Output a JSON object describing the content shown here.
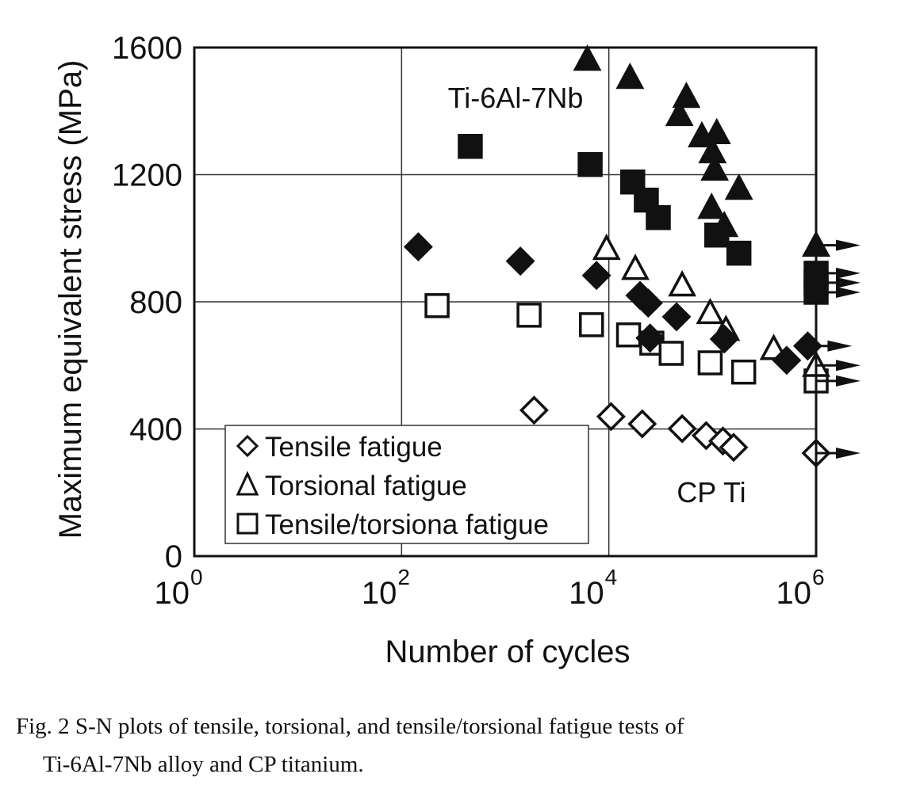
{
  "chart_data": {
    "type": "scatter",
    "xlabel": "Number of cycles",
    "ylabel": "Maximum equivalent stress (MPa)",
    "xscale": "log",
    "xlim": [
      1,
      1000000
    ],
    "ylim": [
      0,
      1600
    ],
    "xticks": [
      {
        "base": "10",
        "exp": "0",
        "value": 1
      },
      {
        "base": "10",
        "exp": "2",
        "value": 100
      },
      {
        "base": "10",
        "exp": "4",
        "value": 10000
      },
      {
        "base": "10",
        "exp": "6",
        "value": 1000000
      }
    ],
    "yticks": [
      0,
      400,
      800,
      1200,
      1600
    ],
    "grid": true,
    "legend": {
      "placement": "bottom-left",
      "entries": [
        {
          "marker": "diamond",
          "label": "Tensile fatigue"
        },
        {
          "marker": "triangle",
          "label": "Torsional fatigue"
        },
        {
          "marker": "square",
          "label": "Tensile/torsiona fatigue"
        }
      ]
    },
    "annotations": [
      {
        "text": "Ti-6Al-7Nb",
        "x": 3000,
        "y": 1440
      },
      {
        "text": "CP Ti",
        "x": 250000,
        "y": 200
      }
    ],
    "runout_note": "arrow",
    "series": [
      {
        "marker": "triangle",
        "filled": true,
        "points": [
          [
            6200,
            1563
          ],
          [
            16000,
            1506
          ],
          [
            56000,
            1446
          ],
          [
            48000,
            1389
          ],
          [
            79000,
            1322
          ],
          [
            110000,
            1332
          ],
          [
            100000,
            1272
          ],
          [
            105000,
            1217
          ],
          [
            98000,
            1097
          ],
          [
            130000,
            1040
          ],
          [
            180000,
            1157
          ],
          [
            1000000,
            978,
            "runout"
          ]
        ]
      },
      {
        "marker": "square",
        "filled": true,
        "points": [
          [
            460,
            1289
          ],
          [
            6600,
            1232
          ],
          [
            17000,
            1177
          ],
          [
            23000,
            1120
          ],
          [
            30000,
            1065
          ],
          [
            110000,
            1010
          ],
          [
            180000,
            953
          ],
          [
            1000000,
            890,
            "runout"
          ],
          [
            1000000,
            860,
            "runout"
          ],
          [
            1000000,
            830,
            "runout"
          ]
        ]
      },
      {
        "marker": "diamond",
        "filled": true,
        "points": [
          [
            145,
            973
          ],
          [
            1400,
            928
          ],
          [
            7600,
            883
          ],
          [
            20000,
            820
          ],
          [
            24000,
            796
          ],
          [
            25000,
            686
          ],
          [
            45000,
            753
          ],
          [
            130000,
            683
          ],
          [
            520000,
            616
          ],
          [
            830000,
            661,
            "runout"
          ]
        ]
      },
      {
        "marker": "triangle",
        "filled": false,
        "points": [
          [
            9500,
            968
          ],
          [
            18000,
            905
          ],
          [
            51000,
            853
          ],
          [
            95000,
            766
          ],
          [
            135000,
            713
          ],
          [
            390000,
            653
          ],
          [
            1000000,
            600,
            "runout"
          ]
        ]
      },
      {
        "marker": "square",
        "filled": false,
        "points": [
          [
            220,
            788
          ],
          [
            1700,
            758
          ],
          [
            6800,
            728
          ],
          [
            15500,
            696
          ],
          [
            26000,
            670
          ],
          [
            40000,
            638
          ],
          [
            95000,
            608
          ],
          [
            200000,
            579
          ],
          [
            1000000,
            551,
            "runout"
          ]
        ]
      },
      {
        "marker": "diamond",
        "filled": false,
        "points": [
          [
            1900,
            459
          ],
          [
            10500,
            439
          ],
          [
            21000,
            416
          ],
          [
            51000,
            401
          ],
          [
            87000,
            379
          ],
          [
            126000,
            362
          ],
          [
            160000,
            342
          ],
          [
            1000000,
            324,
            "runout"
          ]
        ]
      }
    ]
  },
  "caption": {
    "line1": "Fig.  2    S-N plots of tensile, torsional, and tensile/torsional fatigue tests of",
    "line2": "Ti-6Al-7Nb alloy and CP titanium."
  },
  "colors": {
    "ink": "#111111",
    "grid": "#333333",
    "background": "#ffffff"
  }
}
